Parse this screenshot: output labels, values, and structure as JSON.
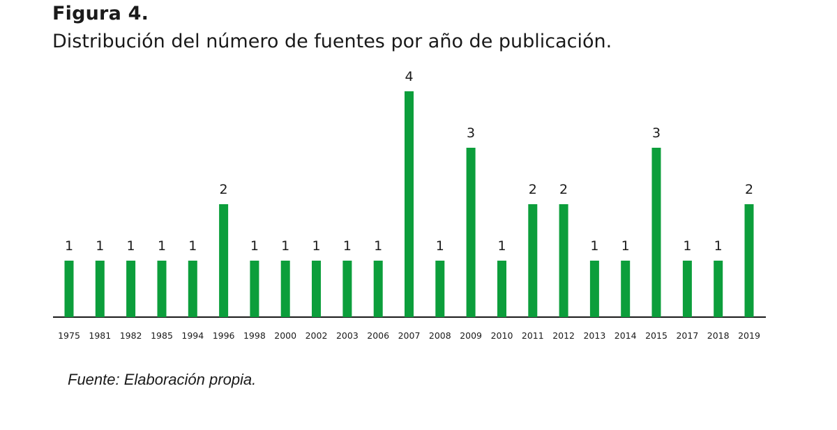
{
  "figure": {
    "label": "Figura 4.",
    "title": "Distribución del número de fuentes por año de publicación.",
    "source": "Fuente: Elaboración propia."
  },
  "colors": {
    "bar": "#0c9e3b",
    "axis": "#1a1a1a",
    "text": "#1a1a1a"
  },
  "chart_data": {
    "type": "bar",
    "categories": [
      "1975",
      "1981",
      "1982",
      "1985",
      "1994",
      "1996",
      "1998",
      "2000",
      "2002",
      "2003",
      "2006",
      "2007",
      "2008",
      "2009",
      "2010",
      "2011",
      "2012",
      "2013",
      "2014",
      "2015",
      "2017",
      "2018",
      "2019"
    ],
    "values": [
      1,
      1,
      1,
      1,
      1,
      2,
      1,
      1,
      1,
      1,
      1,
      4,
      1,
      3,
      1,
      2,
      2,
      1,
      1,
      3,
      1,
      1,
      2
    ],
    "data_labels": true,
    "ylim": [
      0,
      4
    ],
    "grid": false,
    "legend": "none"
  }
}
